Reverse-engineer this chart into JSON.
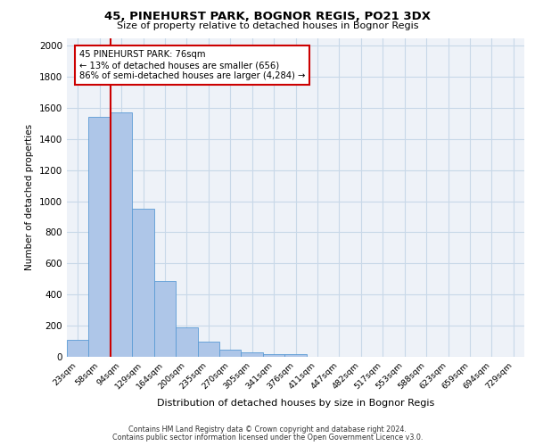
{
  "title1": "45, PINEHURST PARK, BOGNOR REGIS, PO21 3DX",
  "title2": "Size of property relative to detached houses in Bognor Regis",
  "xlabel": "Distribution of detached houses by size in Bognor Regis",
  "ylabel": "Number of detached properties",
  "bin_labels": [
    "23sqm",
    "58sqm",
    "94sqm",
    "129sqm",
    "164sqm",
    "200sqm",
    "235sqm",
    "270sqm",
    "305sqm",
    "341sqm",
    "376sqm",
    "411sqm",
    "447sqm",
    "482sqm",
    "517sqm",
    "553sqm",
    "588sqm",
    "623sqm",
    "659sqm",
    "694sqm",
    "729sqm"
  ],
  "bar_heights": [
    110,
    1540,
    1570,
    950,
    490,
    190,
    95,
    45,
    30,
    20,
    15,
    0,
    0,
    0,
    0,
    0,
    0,
    0,
    0,
    0,
    0
  ],
  "bar_color": "#aec6e8",
  "bar_edge_color": "#5b9bd5",
  "vline_x": 1.5,
  "annotation_text": "45 PINEHURST PARK: 76sqm\n← 13% of detached houses are smaller (656)\n86% of semi-detached houses are larger (4,284) →",
  "annotation_box_color": "#ffffff",
  "annotation_box_edge": "#cc0000",
  "vline_color": "#cc0000",
  "ylim": [
    0,
    2050
  ],
  "yticks": [
    0,
    200,
    400,
    600,
    800,
    1000,
    1200,
    1400,
    1600,
    1800,
    2000
  ],
  "grid_color": "#c8d8e8",
  "bg_color": "#eef2f8",
  "footer1": "Contains HM Land Registry data © Crown copyright and database right 2024.",
  "footer2": "Contains public sector information licensed under the Open Government Licence v3.0."
}
